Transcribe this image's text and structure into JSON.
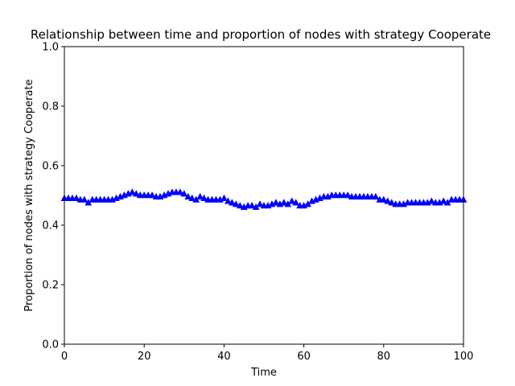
{
  "chart_data": {
    "type": "line",
    "title": "Relationship between time and proportion of nodes with strategy Cooperate",
    "xlabel": "Time",
    "ylabel": "Proportion of nodes with strategy Cooperate",
    "xlim": [
      0,
      100
    ],
    "ylim": [
      0.0,
      1.0
    ],
    "xticks": [
      0,
      20,
      40,
      60,
      80,
      100
    ],
    "yticks": [
      0.0,
      0.2,
      0.4,
      0.6,
      0.8,
      1.0
    ],
    "xtick_labels": [
      "0",
      "20",
      "40",
      "60",
      "80",
      "100"
    ],
    "ytick_labels": [
      "0.0",
      "0.2",
      "0.4",
      "0.6",
      "0.8",
      "1.0"
    ],
    "grid": false,
    "marker": "triangle-up",
    "color": "#0000ff",
    "series": [
      {
        "x": [
          0,
          1,
          2,
          3,
          4,
          5,
          6,
          7,
          8,
          9,
          10,
          11,
          12,
          13,
          14,
          15,
          16,
          17,
          18,
          19,
          20,
          21,
          22,
          23,
          24,
          25,
          26,
          27,
          28,
          29,
          30,
          31,
          32,
          33,
          34,
          35,
          36,
          37,
          38,
          39,
          40,
          41,
          42,
          43,
          44,
          45,
          46,
          47,
          48,
          49,
          50,
          51,
          52,
          53,
          54,
          55,
          56,
          57,
          58,
          59,
          60,
          61,
          62,
          63,
          64,
          65,
          66,
          67,
          68,
          69,
          70,
          71,
          72,
          73,
          74,
          75,
          76,
          77,
          78,
          79,
          80,
          81,
          82,
          83,
          84,
          85,
          86,
          87,
          88,
          89,
          90,
          91,
          92,
          93,
          94,
          95,
          96,
          97,
          98,
          99,
          100
        ],
        "values": [
          0.49,
          0.49,
          0.49,
          0.49,
          0.485,
          0.485,
          0.475,
          0.485,
          0.485,
          0.485,
          0.485,
          0.485,
          0.485,
          0.49,
          0.495,
          0.5,
          0.505,
          0.51,
          0.505,
          0.5,
          0.5,
          0.5,
          0.5,
          0.495,
          0.495,
          0.5,
          0.505,
          0.51,
          0.51,
          0.51,
          0.505,
          0.495,
          0.49,
          0.485,
          0.495,
          0.49,
          0.485,
          0.485,
          0.485,
          0.485,
          0.49,
          0.48,
          0.475,
          0.47,
          0.465,
          0.46,
          0.465,
          0.465,
          0.46,
          0.47,
          0.465,
          0.465,
          0.47,
          0.475,
          0.47,
          0.475,
          0.47,
          0.48,
          0.475,
          0.465,
          0.465,
          0.47,
          0.48,
          0.485,
          0.49,
          0.495,
          0.495,
          0.5,
          0.5,
          0.5,
          0.5,
          0.5,
          0.495,
          0.495,
          0.495,
          0.495,
          0.495,
          0.495,
          0.495,
          0.485,
          0.485,
          0.48,
          0.475,
          0.47,
          0.47,
          0.47,
          0.475,
          0.475,
          0.475,
          0.475,
          0.475,
          0.475,
          0.48,
          0.475,
          0.475,
          0.48,
          0.475,
          0.485,
          0.485,
          0.485,
          0.485
        ]
      }
    ]
  }
}
